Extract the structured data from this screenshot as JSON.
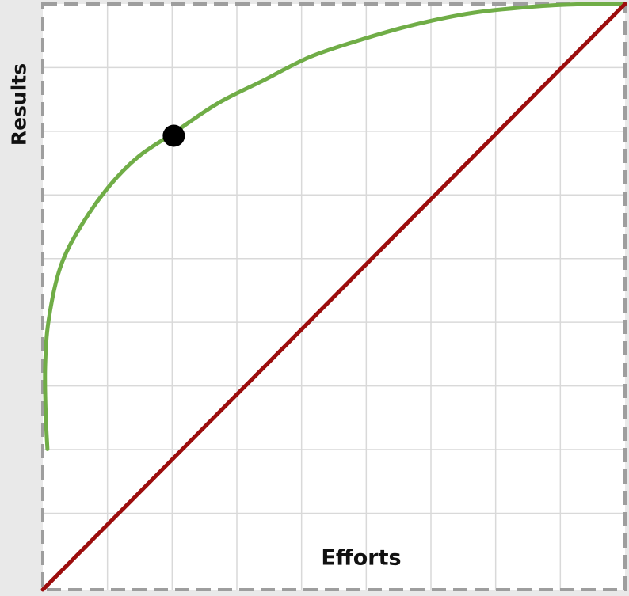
{
  "chart_data": {
    "type": "line",
    "title": "",
    "xlabel": "Efforts",
    "ylabel": "Results",
    "xlim": [
      0,
      1
    ],
    "ylim": [
      0,
      1
    ],
    "grid": true,
    "series": [
      {
        "color": "#70ad47",
        "points": [
          [
            0.008,
            0.24
          ],
          [
            0.005,
            0.3
          ],
          [
            0.004,
            0.38
          ],
          [
            0.01,
            0.46
          ],
          [
            0.03,
            0.55
          ],
          [
            0.065,
            0.62
          ],
          [
            0.115,
            0.69
          ],
          [
            0.165,
            0.74
          ],
          [
            0.225,
            0.78
          ],
          [
            0.3,
            0.83
          ],
          [
            0.38,
            0.87
          ],
          [
            0.46,
            0.91
          ],
          [
            0.55,
            0.94
          ],
          [
            0.64,
            0.965
          ],
          [
            0.74,
            0.985
          ],
          [
            0.85,
            0.996
          ],
          [
            0.94,
            1.0
          ],
          [
            1.0,
            1.0
          ]
        ]
      },
      {
        "color": "#9c0d0d",
        "points": [
          [
            0,
            0
          ],
          [
            1,
            1
          ]
        ]
      }
    ],
    "markers": [
      {
        "x": 0.225,
        "y": 0.775,
        "color": "#000000"
      }
    ]
  }
}
